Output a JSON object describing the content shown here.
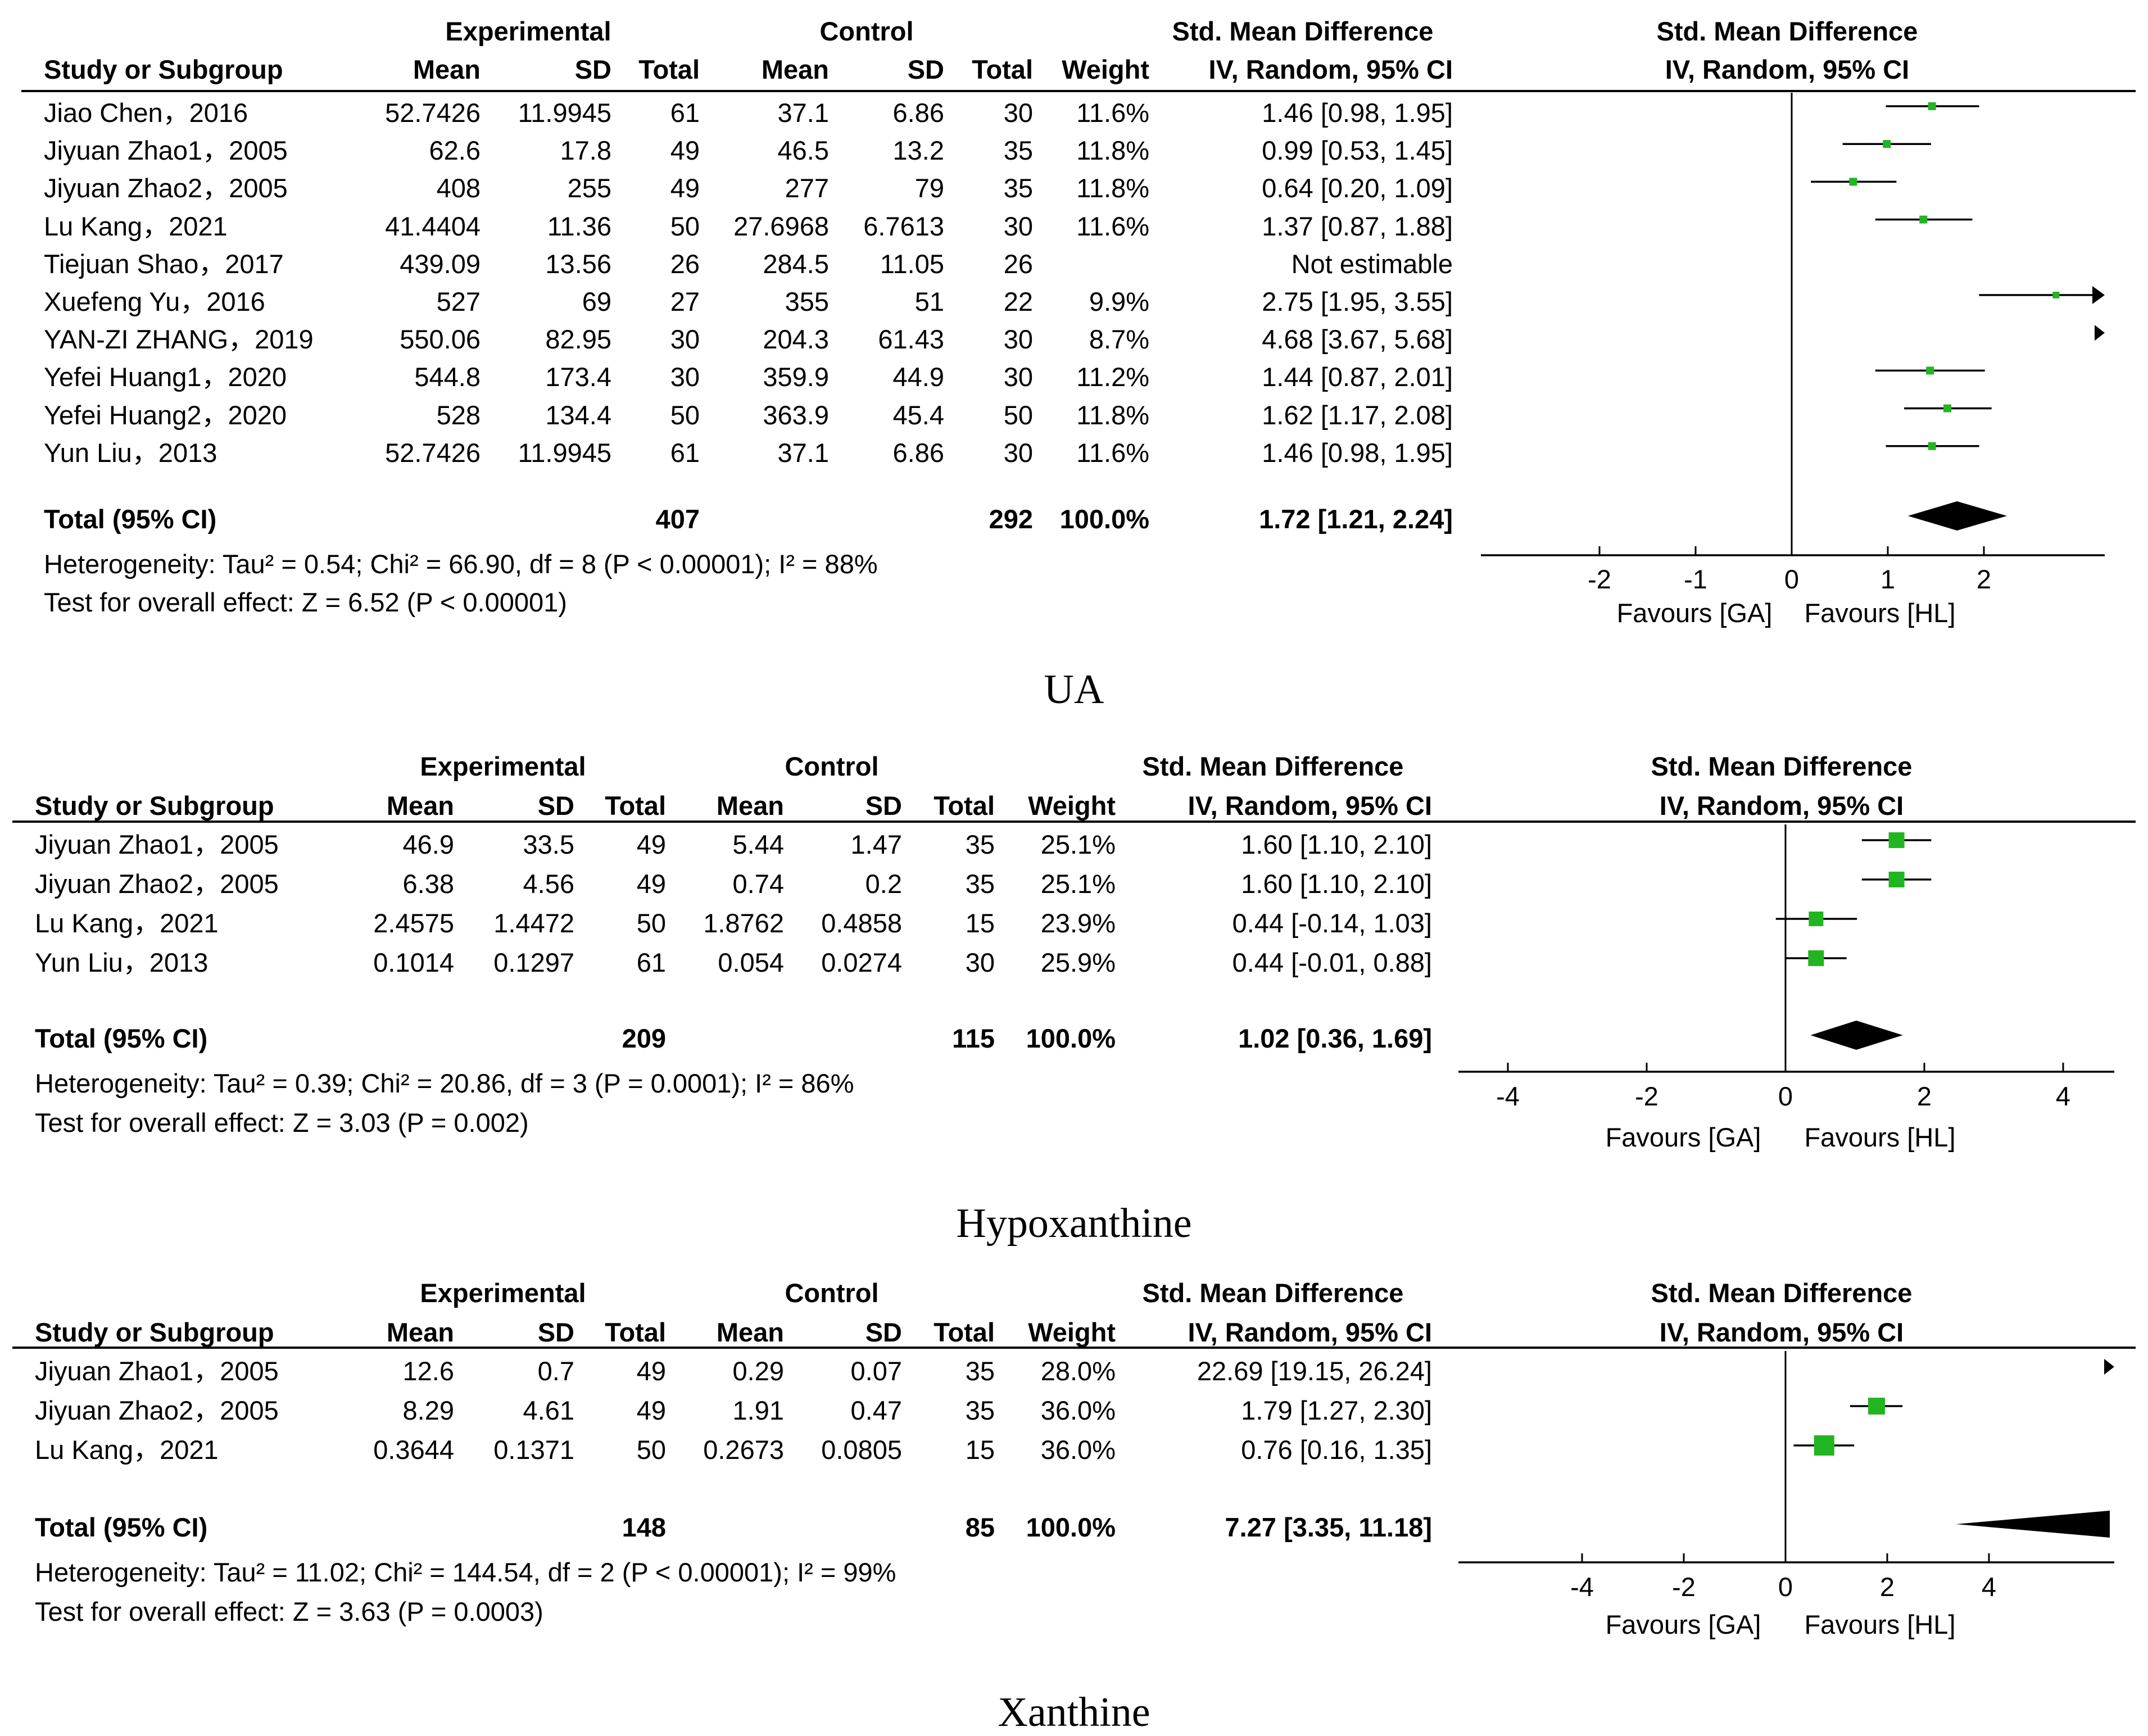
{
  "columns": {
    "study": "Study or Subgroup",
    "experimental": "Experimental",
    "control": "Control",
    "mean": "Mean",
    "sd": "SD",
    "total": "Total",
    "weight": "Weight",
    "smd": "Std. Mean Difference",
    "method": "IV, Random, 95% CI"
  },
  "colors": {
    "marker": "#22b522",
    "line": "#000000"
  },
  "chart_data": [
    {
      "type": "forest",
      "title": "UA",
      "xlabel_left": "Favours [GA]",
      "xlabel_right": "Favours [HL]",
      "xlim": [
        -3.3,
        3.3
      ],
      "ticks": [
        -2,
        -1,
        0,
        1,
        2
      ],
      "tick_labels": [
        "-2",
        "-1",
        "0",
        "1",
        "2"
      ],
      "rows": [
        {
          "study": "Jiao Chen，2016",
          "e_mean": "52.7426",
          "e_sd": "11.9945",
          "e_total": "61",
          "c_mean": "37.1",
          "c_sd": "6.86",
          "c_total": "30",
          "weight": "11.6%",
          "ci_text": "1.46 [0.98, 1.95]",
          "est": 1.46,
          "lo": 0.98,
          "hi": 1.95
        },
        {
          "study": "Jiyuan Zhao1，2005",
          "e_mean": "62.6",
          "e_sd": "17.8",
          "e_total": "49",
          "c_mean": "46.5",
          "c_sd": "13.2",
          "c_total": "35",
          "weight": "11.8%",
          "ci_text": "0.99 [0.53, 1.45]",
          "est": 0.99,
          "lo": 0.53,
          "hi": 1.45
        },
        {
          "study": "Jiyuan Zhao2，2005",
          "e_mean": "408",
          "e_sd": "255",
          "e_total": "49",
          "c_mean": "277",
          "c_sd": "79",
          "c_total": "35",
          "weight": "11.8%",
          "ci_text": "0.64 [0.20, 1.09]",
          "est": 0.64,
          "lo": 0.2,
          "hi": 1.09
        },
        {
          "study": "Lu Kang，2021",
          "e_mean": "41.4404",
          "e_sd": "11.36",
          "e_total": "50",
          "c_mean": "27.6968",
          "c_sd": "6.7613",
          "c_total": "30",
          "weight": "11.6%",
          "ci_text": "1.37 [0.87, 1.88]",
          "est": 1.37,
          "lo": 0.87,
          "hi": 1.88
        },
        {
          "study": "Tiejuan Shao，2017",
          "e_mean": "439.09",
          "e_sd": "13.56",
          "e_total": "26",
          "c_mean": "284.5",
          "c_sd": "11.05",
          "c_total": "26",
          "weight": "",
          "ci_text": "Not estimable",
          "est": null,
          "lo": null,
          "hi": null
        },
        {
          "study": "Xuefeng Yu，2016",
          "e_mean": "527",
          "e_sd": "69",
          "e_total": "27",
          "c_mean": "355",
          "c_sd": "51",
          "c_total": "22",
          "weight": "9.9%",
          "ci_text": "2.75 [1.95, 3.55]",
          "est": 2.75,
          "lo": 1.95,
          "hi": 3.55
        },
        {
          "study": "YAN-ZI ZHANG，2019",
          "e_mean": "550.06",
          "e_sd": "82.95",
          "e_total": "30",
          "c_mean": "204.3",
          "c_sd": "61.43",
          "c_total": "30",
          "weight": "8.7%",
          "ci_text": "4.68 [3.67, 5.68]",
          "est": 4.68,
          "lo": 3.67,
          "hi": 5.68
        },
        {
          "study": "Yefei Huang1，2020",
          "e_mean": "544.8",
          "e_sd": "173.4",
          "e_total": "30",
          "c_mean": "359.9",
          "c_sd": "44.9",
          "c_total": "30",
          "weight": "11.2%",
          "ci_text": "1.44 [0.87, 2.01]",
          "est": 1.44,
          "lo": 0.87,
          "hi": 2.01
        },
        {
          "study": "Yefei Huang2，2020",
          "e_mean": "528",
          "e_sd": "134.4",
          "e_total": "50",
          "c_mean": "363.9",
          "c_sd": "45.4",
          "c_total": "50",
          "weight": "11.8%",
          "ci_text": "1.62 [1.17, 2.08]",
          "est": 1.62,
          "lo": 1.17,
          "hi": 2.08
        },
        {
          "study": "Yun Liu，2013",
          "e_mean": "52.7426",
          "e_sd": "11.9945",
          "e_total": "61",
          "c_mean": "37.1",
          "c_sd": "6.86",
          "c_total": "30",
          "weight": "11.6%",
          "ci_text": "1.46 [0.98, 1.95]",
          "est": 1.46,
          "lo": 0.98,
          "hi": 1.95
        }
      ],
      "total": {
        "label": "Total (95% CI)",
        "e_total": "407",
        "c_total": "292",
        "weight": "100.0%",
        "ci_text": "1.72 [1.21, 2.24]",
        "est": 1.72,
        "lo": 1.21,
        "hi": 2.24
      },
      "heterogeneity": "Heterogeneity: Tau² = 0.54; Chi² = 66.90, df = 8 (P < 0.00001); I² = 88%",
      "overall_effect": "Test for overall effect: Z = 6.52 (P < 0.00001)"
    },
    {
      "type": "forest",
      "title": "Hypoxanthine",
      "xlabel_left": "Favours [GA]",
      "xlabel_right": "Favours [HL]",
      "xlim": [
        -4.7,
        4.7
      ],
      "ticks": [
        -4,
        -2,
        0,
        2,
        4
      ],
      "tick_labels": [
        "-4",
        "-2",
        "0",
        "2",
        "4"
      ],
      "rows": [
        {
          "study": "Jiyuan Zhao1，2005",
          "e_mean": "46.9",
          "e_sd": "33.5",
          "e_total": "49",
          "c_mean": "5.44",
          "c_sd": "1.47",
          "c_total": "35",
          "weight": "25.1%",
          "ci_text": "1.60 [1.10, 2.10]",
          "est": 1.6,
          "lo": 1.1,
          "hi": 2.1
        },
        {
          "study": "Jiyuan Zhao2，2005",
          "e_mean": "6.38",
          "e_sd": "4.56",
          "e_total": "49",
          "c_mean": "0.74",
          "c_sd": "0.2",
          "c_total": "35",
          "weight": "25.1%",
          "ci_text": "1.60 [1.10, 2.10]",
          "est": 1.6,
          "lo": 1.1,
          "hi": 2.1
        },
        {
          "study": "Lu Kang，2021",
          "e_mean": "2.4575",
          "e_sd": "1.4472",
          "e_total": "50",
          "c_mean": "1.8762",
          "c_sd": "0.4858",
          "c_total": "15",
          "weight": "23.9%",
          "ci_text": "0.44 [-0.14, 1.03]",
          "est": 0.44,
          "lo": -0.14,
          "hi": 1.03
        },
        {
          "study": "Yun Liu，2013",
          "e_mean": "0.1014",
          "e_sd": "0.1297",
          "e_total": "61",
          "c_mean": "0.054",
          "c_sd": "0.0274",
          "c_total": "30",
          "weight": "25.9%",
          "ci_text": "0.44 [-0.01, 0.88]",
          "est": 0.44,
          "lo": -0.01,
          "hi": 0.88
        }
      ],
      "total": {
        "label": "Total (95% CI)",
        "e_total": "209",
        "c_total": "115",
        "weight": "100.0%",
        "ci_text": "1.02 [0.36, 1.69]",
        "est": 1.02,
        "lo": 0.36,
        "hi": 1.69
      },
      "heterogeneity": "Heterogeneity: Tau² = 0.39; Chi² = 20.86, df = 3 (P = 0.0001); I² = 86%",
      "overall_effect": "Test for overall effect: Z = 3.03 (P = 0.002)"
    },
    {
      "type": "forest",
      "title": "Xanthine",
      "xlabel_left": "Favours [GA]",
      "xlabel_right": "Favours [HL]",
      "xlim": [
        -6.6,
        6.6
      ],
      "ticks": [
        -4,
        -2,
        0,
        2,
        4
      ],
      "tick_labels": [
        "-4",
        "-2",
        "0",
        "2",
        "4"
      ],
      "rows": [
        {
          "study": "Jiyuan Zhao1，2005",
          "e_mean": "12.6",
          "e_sd": "0.7",
          "e_total": "49",
          "c_mean": "0.29",
          "c_sd": "0.07",
          "c_total": "35",
          "weight": "28.0%",
          "ci_text": "22.69 [19.15, 26.24]",
          "est": 22.69,
          "lo": 19.15,
          "hi": 26.24
        },
        {
          "study": "Jiyuan Zhao2，2005",
          "e_mean": "8.29",
          "e_sd": "4.61",
          "e_total": "49",
          "c_mean": "1.91",
          "c_sd": "0.47",
          "c_total": "35",
          "weight": "36.0%",
          "ci_text": "1.79 [1.27, 2.30]",
          "est": 1.79,
          "lo": 1.27,
          "hi": 2.3
        },
        {
          "study": "Lu Kang，2021",
          "e_mean": "0.3644",
          "e_sd": "0.1371",
          "e_total": "50",
          "c_mean": "0.2673",
          "c_sd": "0.0805",
          "c_total": "15",
          "weight": "36.0%",
          "ci_text": "0.76 [0.16, 1.35]",
          "est": 0.76,
          "lo": 0.16,
          "hi": 1.35
        }
      ],
      "total": {
        "label": "Total (95% CI)",
        "e_total": "148",
        "c_total": "85",
        "weight": "100.0%",
        "ci_text": "7.27 [3.35, 11.18]",
        "est": 7.27,
        "lo": 3.35,
        "hi": 11.18
      },
      "heterogeneity": "Heterogeneity: Tau² = 11.02; Chi² = 144.54, df = 2 (P < 0.00001); I² = 99%",
      "overall_effect": "Test for overall effect: Z = 3.63 (P = 0.0003)"
    }
  ]
}
